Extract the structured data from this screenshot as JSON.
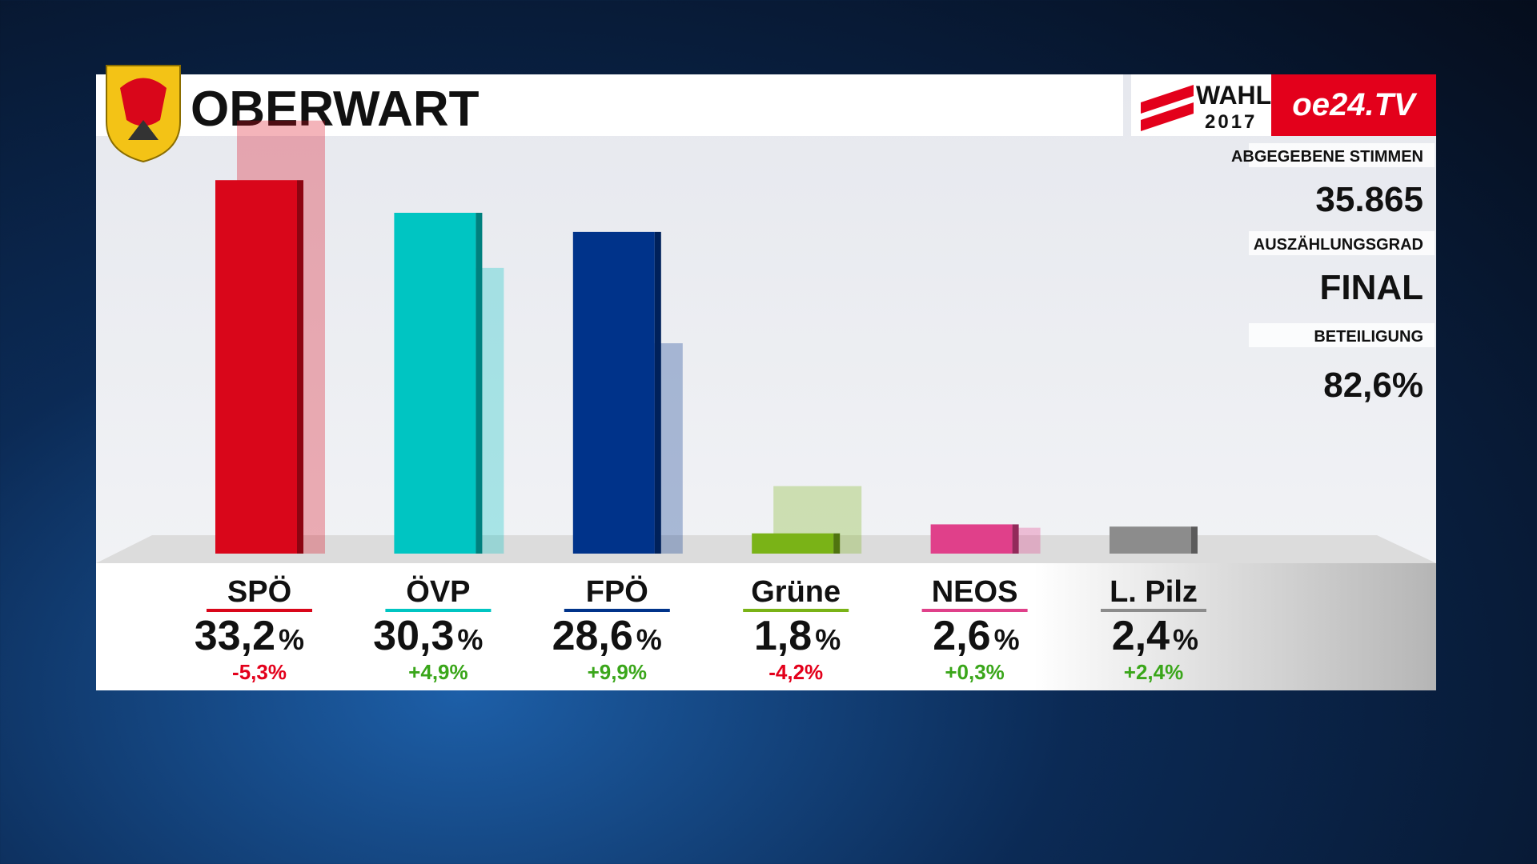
{
  "header": {
    "title": "OBERWART",
    "logo_wahl": "WAHL",
    "logo_year": "2017",
    "logo_channel": "oe24.TV"
  },
  "info": [
    {
      "label": "ABGEGEBENE STIMMEN",
      "value": "35.865"
    },
    {
      "label": "AUSZÄHLUNGSGRAD",
      "value": "FINAL"
    },
    {
      "label": "BETEILIGUNG",
      "value": "82,6%"
    }
  ],
  "chart_data": {
    "type": "bar",
    "categories": [
      "SPÖ",
      "ÖVP",
      "FPÖ",
      "Grüne",
      "NEOS",
      "L. Pilz"
    ],
    "colors": [
      "#d9061a",
      "#00c5c2",
      "#00338a",
      "#7ab317",
      "#e0408a",
      "#8c8c8c"
    ],
    "values": [
      33.2,
      30.3,
      28.6,
      1.8,
      2.6,
      2.4
    ],
    "value_labels": [
      "33,2",
      "30,3",
      "28,6",
      "1,8",
      "2,6",
      "2,4"
    ],
    "unit": "%",
    "previous_values": [
      38.5,
      25.4,
      18.7,
      6.0,
      2.3,
      null
    ],
    "changes": [
      -5.3,
      4.9,
      9.9,
      -4.2,
      0.3,
      2.4
    ],
    "change_labels": [
      "-5,3%",
      "+4,9%",
      "+9,9%",
      "-4,2%",
      "+0,3%",
      "+2,4%"
    ]
  }
}
